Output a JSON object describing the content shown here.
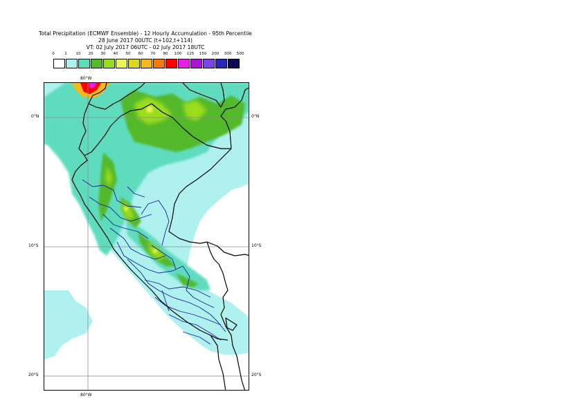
{
  "titles": {
    "line1": "Total Precipitation (ECMWF Ensemble) - 12 Hourly Accumulation - 95th Percentile",
    "line2": "28 June 2017 00UTC (t+102,t+114)",
    "line3": "VT: 02 July 2017 06UTC - 02 July 2017 18UTC"
  },
  "legend": {
    "ticks": [
      "0",
      "1",
      "10",
      "20",
      "30",
      "40",
      "50",
      "60",
      "70",
      "80",
      "100",
      "125",
      "150",
      "200",
      "300",
      "500"
    ],
    "colors": [
      "#ffffff",
      "#aef1ee",
      "#5edcbe",
      "#53b82a",
      "#9bdc1e",
      "#e9f55a",
      "#dcd81e",
      "#f5b81e",
      "#f57a0a",
      "#ff0000",
      "#e61ee6",
      "#aa14d2",
      "#7a46e6",
      "#2828b4",
      "#0a0a55"
    ]
  },
  "gridlabels": {
    "lat_top_left": "0°N",
    "lat_top_right": "0°N",
    "lat_mid_left": "10°S",
    "lat_mid_right": "10°S",
    "lat_bot_left": "20°S",
    "lat_bot_right": "20°S",
    "lon_top": "80°W",
    "lon_bottom": "80°W"
  },
  "colors": {
    "coast": "#000000",
    "admin": "#1b1ba8",
    "grid": "#8c8c8c"
  }
}
